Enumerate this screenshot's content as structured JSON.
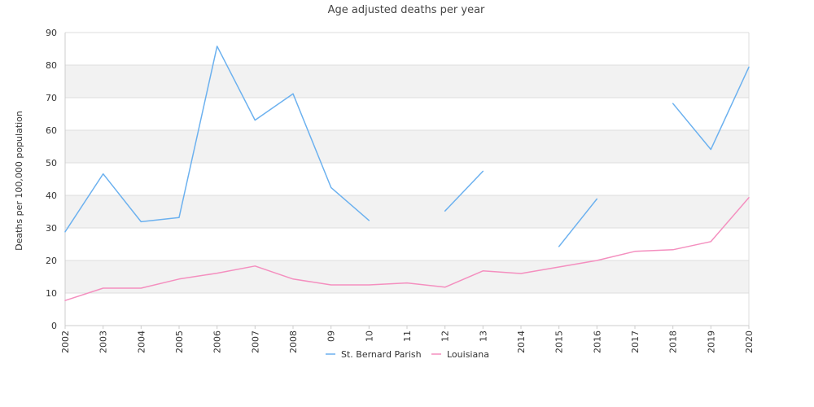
{
  "chart_data": {
    "type": "line",
    "title": "Age adjusted deaths per year",
    "xlabel": "",
    "ylabel": "Deaths per 100,000 population",
    "ylim": [
      0,
      90
    ],
    "yticks": [
      "0",
      "10",
      "20",
      "30",
      "40",
      "50",
      "60",
      "70",
      "80",
      "90"
    ],
    "categories": [
      "2002",
      "2003",
      "2004",
      "2005",
      "2006",
      "2007",
      "2008",
      "09",
      "10",
      "11",
      "12",
      "13",
      "2014",
      "2015",
      "2016",
      "2017",
      "2018",
      "2019",
      "2020"
    ],
    "grid": "horizontal bands",
    "legend": "bottom-center",
    "series": [
      {
        "name": "St. Bernard Parish",
        "color": "#6cb1ef",
        "values": [
          28.8,
          46.6,
          31.9,
          33.2,
          85.8,
          63.1,
          71.2,
          42.4,
          32.3,
          null,
          35.2,
          47.4,
          null,
          24.3,
          38.9,
          null,
          68.2,
          54.1,
          79.4
        ]
      },
      {
        "name": "Louisiana",
        "color": "#f48fbf",
        "values": [
          7.7,
          11.5,
          11.5,
          14.3,
          16.1,
          18.3,
          14.3,
          12.5,
          12.5,
          13.1,
          11.8,
          16.8,
          16.0,
          18.0,
          20.0,
          22.8,
          23.3,
          25.8,
          39.3
        ]
      }
    ]
  }
}
